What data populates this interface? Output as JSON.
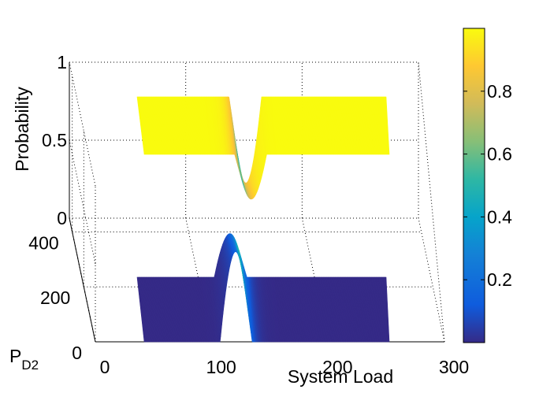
{
  "chart_data": {
    "type": "surface",
    "title": "",
    "xlabel": "System Load",
    "ylabel": "Probability",
    "zlabel": "P",
    "zlabel_sub": "D2",
    "x_ticks": [
      "0",
      "100",
      "200",
      "300"
    ],
    "y_ticks": [
      "0",
      "0.5",
      "1"
    ],
    "z_ticks": [
      "0",
      "200",
      "400"
    ],
    "xlim": [
      0,
      300
    ],
    "ylim": [
      0,
      1
    ],
    "zlim": [
      0,
      450
    ],
    "grid": true,
    "colormap": "parula",
    "colorbar": {
      "position": "right",
      "range": [
        0,
        1
      ],
      "ticks": [
        "0.2",
        "0.4",
        "0.6",
        "0.8"
      ],
      "tick_values": [
        0.2,
        0.4,
        0.6,
        0.8
      ]
    },
    "series": [
      {
        "surface": "upper",
        "x": [
          30,
          60,
          90,
          100,
          105,
          110,
          115,
          120,
          130,
          150,
          190,
          240
        ],
        "y": [
          1.0,
          1.0,
          0.99,
          0.96,
          0.9,
          0.78,
          0.5,
          0.22,
          0.04,
          0.01,
          0.0,
          0.0
        ]
      },
      {
        "surface": "lower",
        "x": [
          30,
          60,
          90,
          100,
          105,
          110,
          115,
          120,
          130,
          150,
          190,
          240
        ],
        "y": [
          0.0,
          0.0,
          0.01,
          0.04,
          0.1,
          0.22,
          0.5,
          0.78,
          0.96,
          0.99,
          1.0,
          1.0
        ]
      }
    ]
  }
}
